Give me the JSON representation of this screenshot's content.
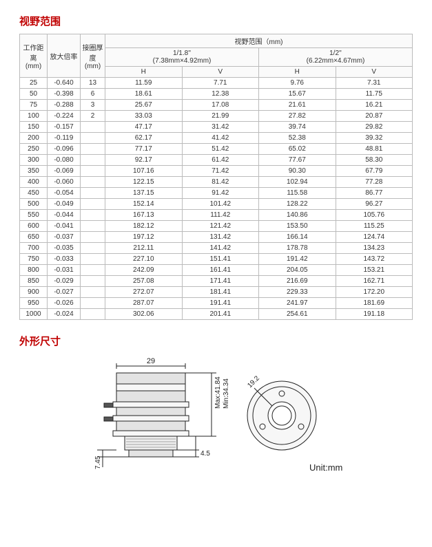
{
  "titles": {
    "fov": "视野范围",
    "dims": "外形尺寸"
  },
  "headers": {
    "workDist": "工作距离",
    "workDistUnit": "(mm)",
    "mag": "放大倍率",
    "ringThick": "接圈厚度",
    "ringUnit": "(mm)",
    "fov": "视野范围（mm)",
    "fmt1": "1/1.8''",
    "fmt1sub": "(7.38mm×4.92mm)",
    "fmt2": "1/2''",
    "fmt2sub": "(6.22mm×4.67mm)",
    "H": "H",
    "V": "V"
  },
  "rows": [
    {
      "wd": "25",
      "mag": "-0.640",
      "ring": "13",
      "h1": "11.59",
      "v1": "7.71",
      "h2": "9.76",
      "v2": "7.31"
    },
    {
      "wd": "50",
      "mag": "-0.398",
      "ring": "6",
      "h1": "18.61",
      "v1": "12.38",
      "h2": "15.67",
      "v2": "11.75"
    },
    {
      "wd": "75",
      "mag": "-0.288",
      "ring": "3",
      "h1": "25.67",
      "v1": "17.08",
      "h2": "21.61",
      "v2": "16.21"
    },
    {
      "wd": "100",
      "mag": "-0.224",
      "ring": "2",
      "h1": "33.03",
      "v1": "21.99",
      "h2": "27.82",
      "v2": "20.87"
    },
    {
      "wd": "150",
      "mag": "-0.157",
      "ring": "",
      "h1": "47.17",
      "v1": "31.42",
      "h2": "39.74",
      "v2": "29.82"
    },
    {
      "wd": "200",
      "mag": "-0.119",
      "ring": "",
      "h1": "62.17",
      "v1": "41.42",
      "h2": "52.38",
      "v2": "39.32"
    },
    {
      "wd": "250",
      "mag": "-0.096",
      "ring": "",
      "h1": "77.17",
      "v1": "51.42",
      "h2": "65.02",
      "v2": "48.81"
    },
    {
      "wd": "300",
      "mag": "-0.080",
      "ring": "",
      "h1": "92.17",
      "v1": "61.42",
      "h2": "77.67",
      "v2": "58.30"
    },
    {
      "wd": "350",
      "mag": "-0.069",
      "ring": "",
      "h1": "107.16",
      "v1": "71.42",
      "h2": "90.30",
      "v2": "67.79"
    },
    {
      "wd": "400",
      "mag": "-0.060",
      "ring": "",
      "h1": "122.15",
      "v1": "81.42",
      "h2": "102.94",
      "v2": "77.28"
    },
    {
      "wd": "450",
      "mag": "-0.054",
      "ring": "",
      "h1": "137.15",
      "v1": "91.42",
      "h2": "115.58",
      "v2": "86.77"
    },
    {
      "wd": "500",
      "mag": "-0.049",
      "ring": "",
      "h1": "152.14",
      "v1": "101.42",
      "h2": "128.22",
      "v2": "96.27"
    },
    {
      "wd": "550",
      "mag": "-0.044",
      "ring": "",
      "h1": "167.13",
      "v1": "111.42",
      "h2": "140.86",
      "v2": "105.76"
    },
    {
      "wd": "600",
      "mag": "-0.041",
      "ring": "",
      "h1": "182.12",
      "v1": "121.42",
      "h2": "153.50",
      "v2": "115.25"
    },
    {
      "wd": "650",
      "mag": "-0.037",
      "ring": "",
      "h1": "197.12",
      "v1": "131.42",
      "h2": "166.14",
      "v2": "124.74"
    },
    {
      "wd": "700",
      "mag": "-0.035",
      "ring": "",
      "h1": "212.11",
      "v1": "141.42",
      "h2": "178.78",
      "v2": "134.23"
    },
    {
      "wd": "750",
      "mag": "-0.033",
      "ring": "",
      "h1": "227.10",
      "v1": "151.41",
      "h2": "191.42",
      "v2": "143.72"
    },
    {
      "wd": "800",
      "mag": "-0.031",
      "ring": "",
      "h1": "242.09",
      "v1": "161.41",
      "h2": "204.05",
      "v2": "153.21"
    },
    {
      "wd": "850",
      "mag": "-0.029",
      "ring": "",
      "h1": "257.08",
      "v1": "171.41",
      "h2": "216.69",
      "v2": "162.71"
    },
    {
      "wd": "900",
      "mag": "-0.027",
      "ring": "",
      "h1": "272.07",
      "v1": "181.41",
      "h2": "229.33",
      "v2": "172.20"
    },
    {
      "wd": "950",
      "mag": "-0.026",
      "ring": "",
      "h1": "287.07",
      "v1": "191.41",
      "h2": "241.97",
      "v2": "181.69"
    },
    {
      "wd": "1000",
      "mag": "-0.024",
      "ring": "",
      "h1": "302.06",
      "v1": "201.41",
      "h2": "254.61",
      "v2": "191.18"
    }
  ],
  "drawing": {
    "width_dim": "29",
    "max_len": "Max:41.84",
    "min_len": "Min:34.34",
    "flange": "4.5",
    "base": "7.45",
    "front_diam": "19.2",
    "unit": "Unit:mm",
    "stroke": "#222",
    "fill_light": "#f7f7f7",
    "fill_mid": "#e3e3e3"
  }
}
